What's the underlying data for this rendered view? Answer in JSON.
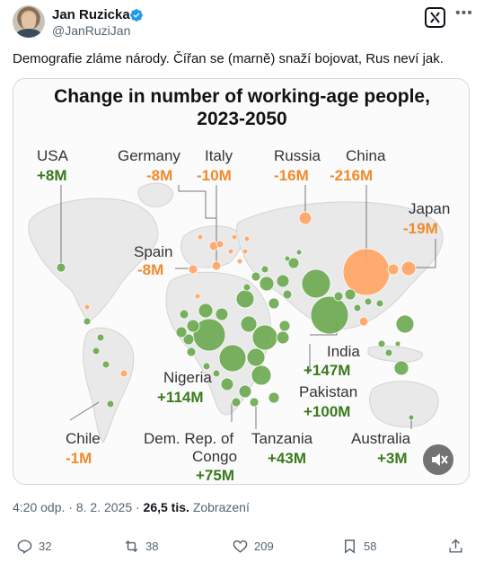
{
  "author": {
    "name": "Jan Ruzicka",
    "handle": "@JanRuziJan"
  },
  "tweet": {
    "text": "Demografie zláme národy. Čířan se (marně) snaží bojovat, Rus neví jak.",
    "time": "4:20 odp. · 8. 2. 2025 ·",
    "views_count": "26,5 tis.",
    "views_label": "Zobrazení"
  },
  "actions": {
    "replies": "32",
    "reposts": "38",
    "likes": "209",
    "bookmarks": "58"
  },
  "chart": {
    "title_line1": "Change in number of working-age people,",
    "title_line2": "2023-2050",
    "labels": {
      "usa": "USA",
      "usa_val": "+8M",
      "germany": "Germany",
      "germany_val": "-8M",
      "italy": "Italy",
      "italy_val": "-10M",
      "russia": "Russia",
      "russia_val": "-16M",
      "china": "China",
      "china_val": "-216M",
      "japan": "Japan",
      "japan_val": "-19M",
      "spain": "Spain",
      "spain_val": "-8M",
      "nigeria": "Nigeria",
      "nigeria_val": "+114M",
      "india": "India",
      "india_val": "+147M",
      "pakistan": "Pakistan",
      "pakistan_val": "+100M",
      "chile": "Chile",
      "chile_val": "-1M",
      "drc_1": "Dem. Rep. of",
      "drc_2": "Congo",
      "drc_val": "+75M",
      "tanzania": "Tanzania",
      "tanzania_val": "+43M",
      "australia": "Australia",
      "australia_val": "+3M"
    },
    "colors": {
      "positive": "#3a7a1c",
      "negative": "#f08a2b",
      "bubble_positive": "#6aa84f",
      "bubble_negative": "#ffa463"
    }
  }
}
